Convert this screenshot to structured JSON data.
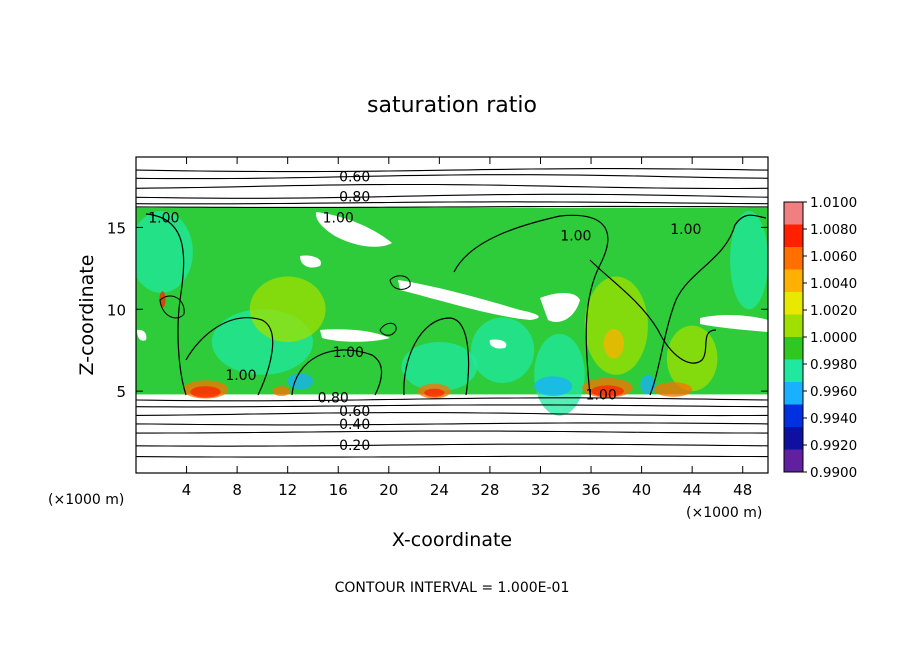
{
  "chart_data": {
    "type": "heatmap",
    "title": "saturation ratio",
    "xlabel": "X-coordinate",
    "ylabel": "Z-coordinate",
    "x_unit": "(×1000 m)",
    "z_unit": "(×1000 m)",
    "xlim": [
      0,
      50
    ],
    "ylim": [
      0,
      19.3
    ],
    "x_ticks": [
      4,
      8,
      12,
      16,
      20,
      24,
      28,
      32,
      36,
      40,
      44,
      48
    ],
    "y_ticks": [
      5,
      10,
      15
    ],
    "footer": "CONTOUR INTERVAL = 1.000E-01",
    "colorbar": {
      "range": [
        0.99,
        1.01
      ],
      "labels": [
        "1.0100",
        "1.0080",
        "1.0060",
        "1.0040",
        "1.0020",
        "1.0000",
        "0.9980",
        "0.9960",
        "0.9940",
        "0.9920",
        "0.9900"
      ],
      "colors": [
        "#f08080",
        "#ff2000",
        "#ff7000",
        "#ffb000",
        "#e8e800",
        "#a0e000",
        "#30c820",
        "#20e8a0",
        "#18b0ff",
        "#0030e0",
        "#1010a0",
        "#6020a0"
      ]
    },
    "field_top_km": 16.2,
    "field_bottom_km": 4.8,
    "contour_labels": [
      {
        "text": "0.60",
        "x": 17.3,
        "z": 18.1
      },
      {
        "text": "0.80",
        "x": 17.3,
        "z": 16.9
      },
      {
        "text": "1.00",
        "x": 2.2,
        "z": 15.6
      },
      {
        "text": "1.00",
        "x": 16.0,
        "z": 15.6
      },
      {
        "text": "1.00",
        "x": 34.8,
        "z": 14.5
      },
      {
        "text": "1.00",
        "x": 43.5,
        "z": 14.9
      },
      {
        "text": "1.00",
        "x": 8.3,
        "z": 6.0
      },
      {
        "text": "1.00",
        "x": 16.8,
        "z": 7.4
      },
      {
        "text": "1.00",
        "x": 36.8,
        "z": 4.8
      },
      {
        "text": "0.80",
        "x": 15.6,
        "z": 4.6
      },
      {
        "text": "0.60",
        "x": 17.3,
        "z": 3.8
      },
      {
        "text": "0.40",
        "x": 17.3,
        "z": 3.0
      },
      {
        "text": "0.20",
        "x": 17.3,
        "z": 1.7
      }
    ]
  }
}
